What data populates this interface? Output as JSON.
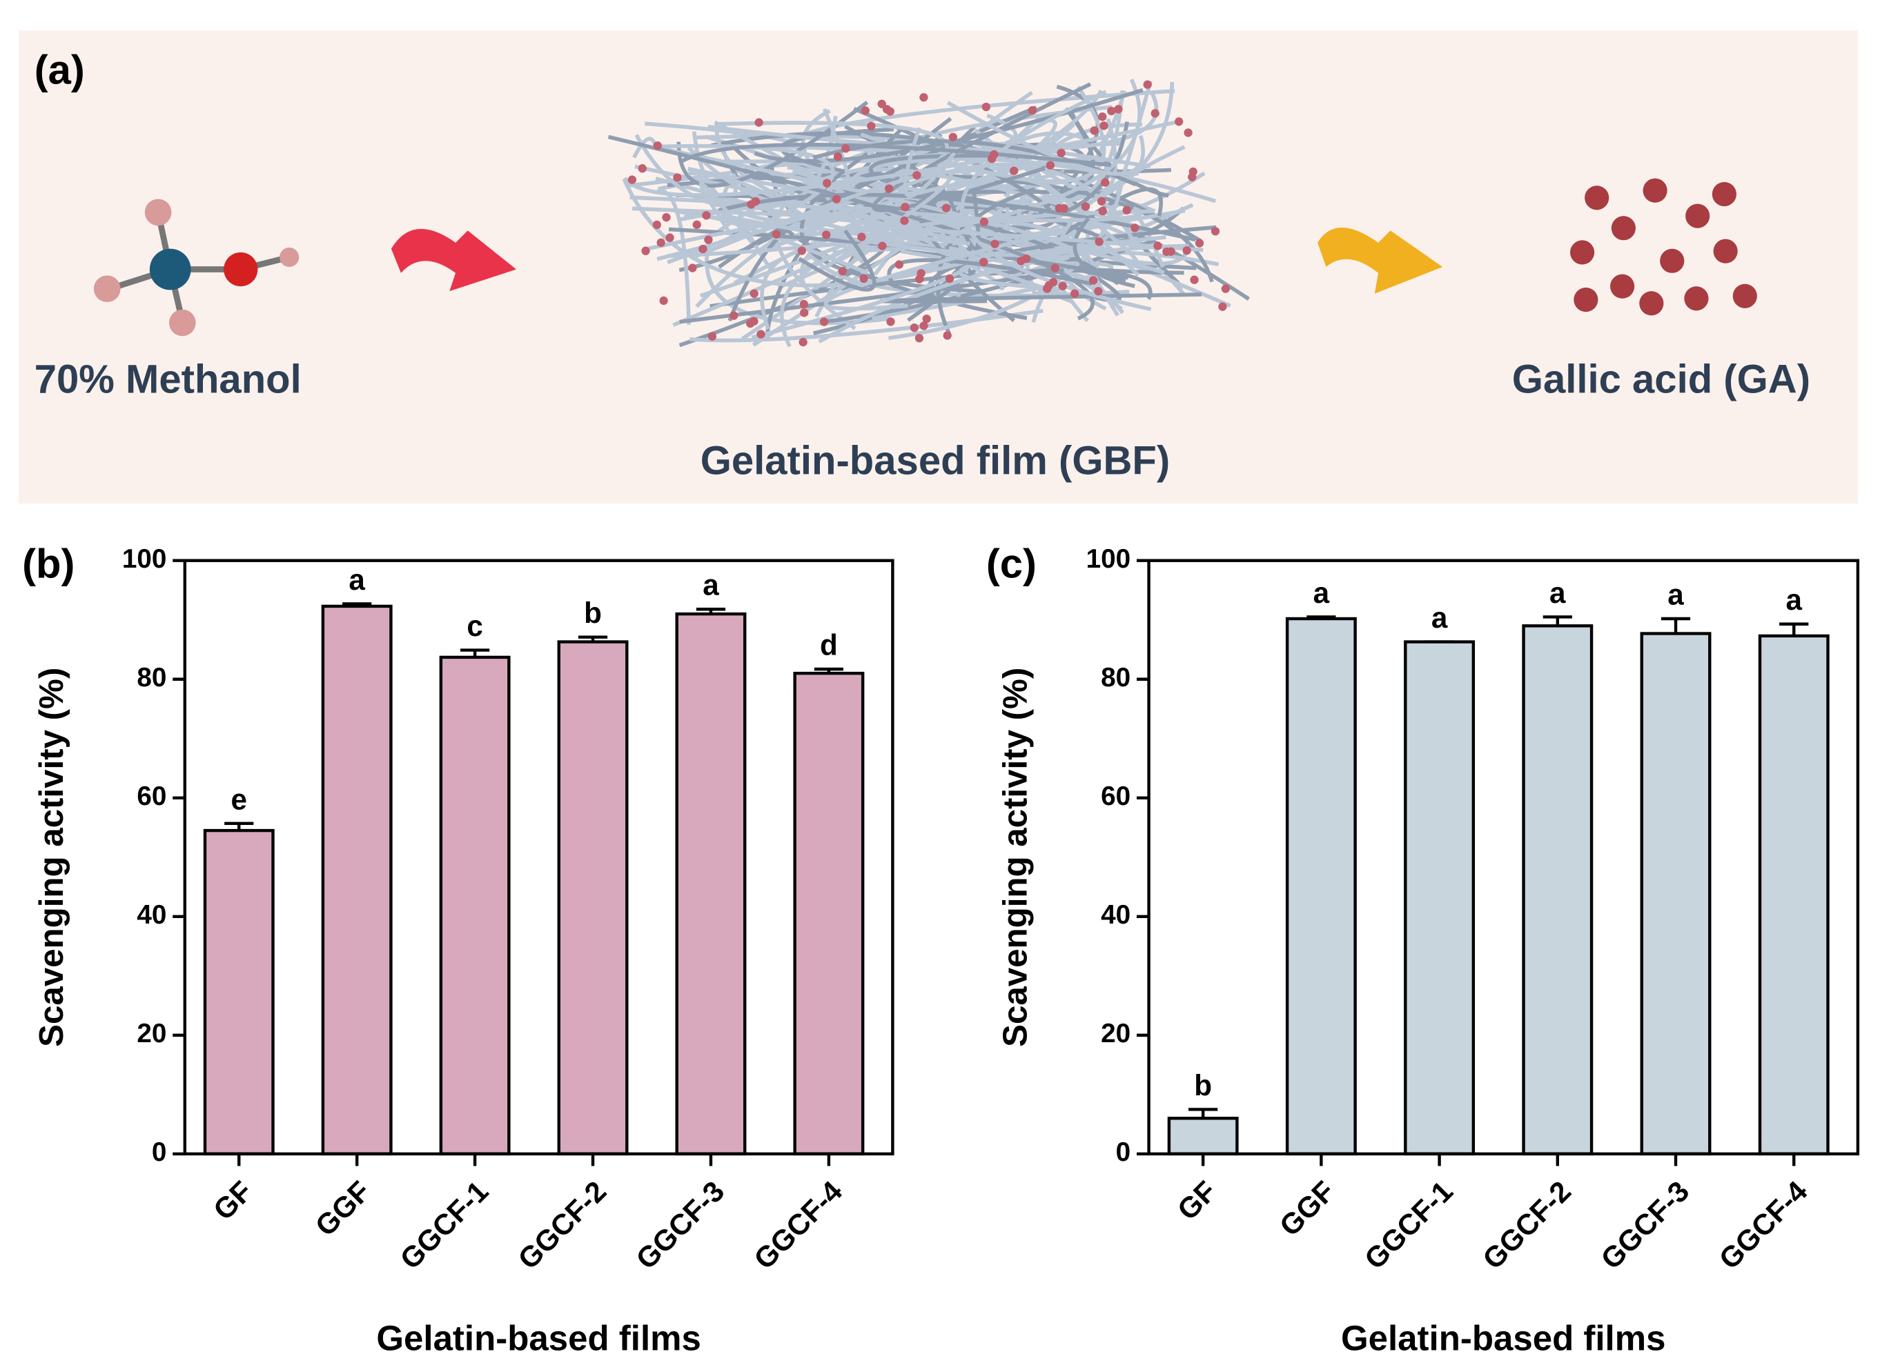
{
  "panel_a": {
    "label": "(a)",
    "left_text": "70% Methanol",
    "center_text": "Gelatin-based film (GBF)",
    "right_text": "Gallic acid (GA)"
  },
  "chart_data": [
    {
      "type": "bar",
      "panel_label": "(b)",
      "y_label": "Scavenging activity (%)",
      "x_label": "Gelatin-based films",
      "categories": [
        "GF",
        "GGF",
        "GGCF-1",
        "GGCF-2",
        "GGCF-3",
        "GGCF-4"
      ],
      "values": [
        54.5,
        92.3,
        83.7,
        86.3,
        91,
        81
      ],
      "errors": [
        1.2,
        0.4,
        1.2,
        0.8,
        0.8,
        0.7
      ],
      "letters": [
        "e",
        "a",
        "c",
        "b",
        "a",
        "d"
      ],
      "color": "#d8a9bd",
      "ylim": [
        0,
        100
      ],
      "yticks": [
        0,
        20,
        40,
        60,
        80,
        100
      ]
    },
    {
      "type": "bar",
      "panel_label": "(c)",
      "y_label": "Scavenging activity (%)",
      "x_label": "Gelatin-based films",
      "categories": [
        "GF",
        "GGF",
        "GGCF-1",
        "GGCF-2",
        "GGCF-3",
        "GGCF-4"
      ],
      "values": [
        6,
        90.2,
        86.3,
        89,
        87.7,
        87.3
      ],
      "errors": [
        1.5,
        0.3,
        0,
        1.5,
        2.5,
        2
      ],
      "letters": [
        "b",
        "a",
        "a",
        "a",
        "a",
        "a"
      ],
      "color": "#c9d5dd",
      "ylim": [
        0,
        100
      ],
      "yticks": [
        0,
        20,
        40,
        60,
        80,
        100
      ]
    }
  ]
}
